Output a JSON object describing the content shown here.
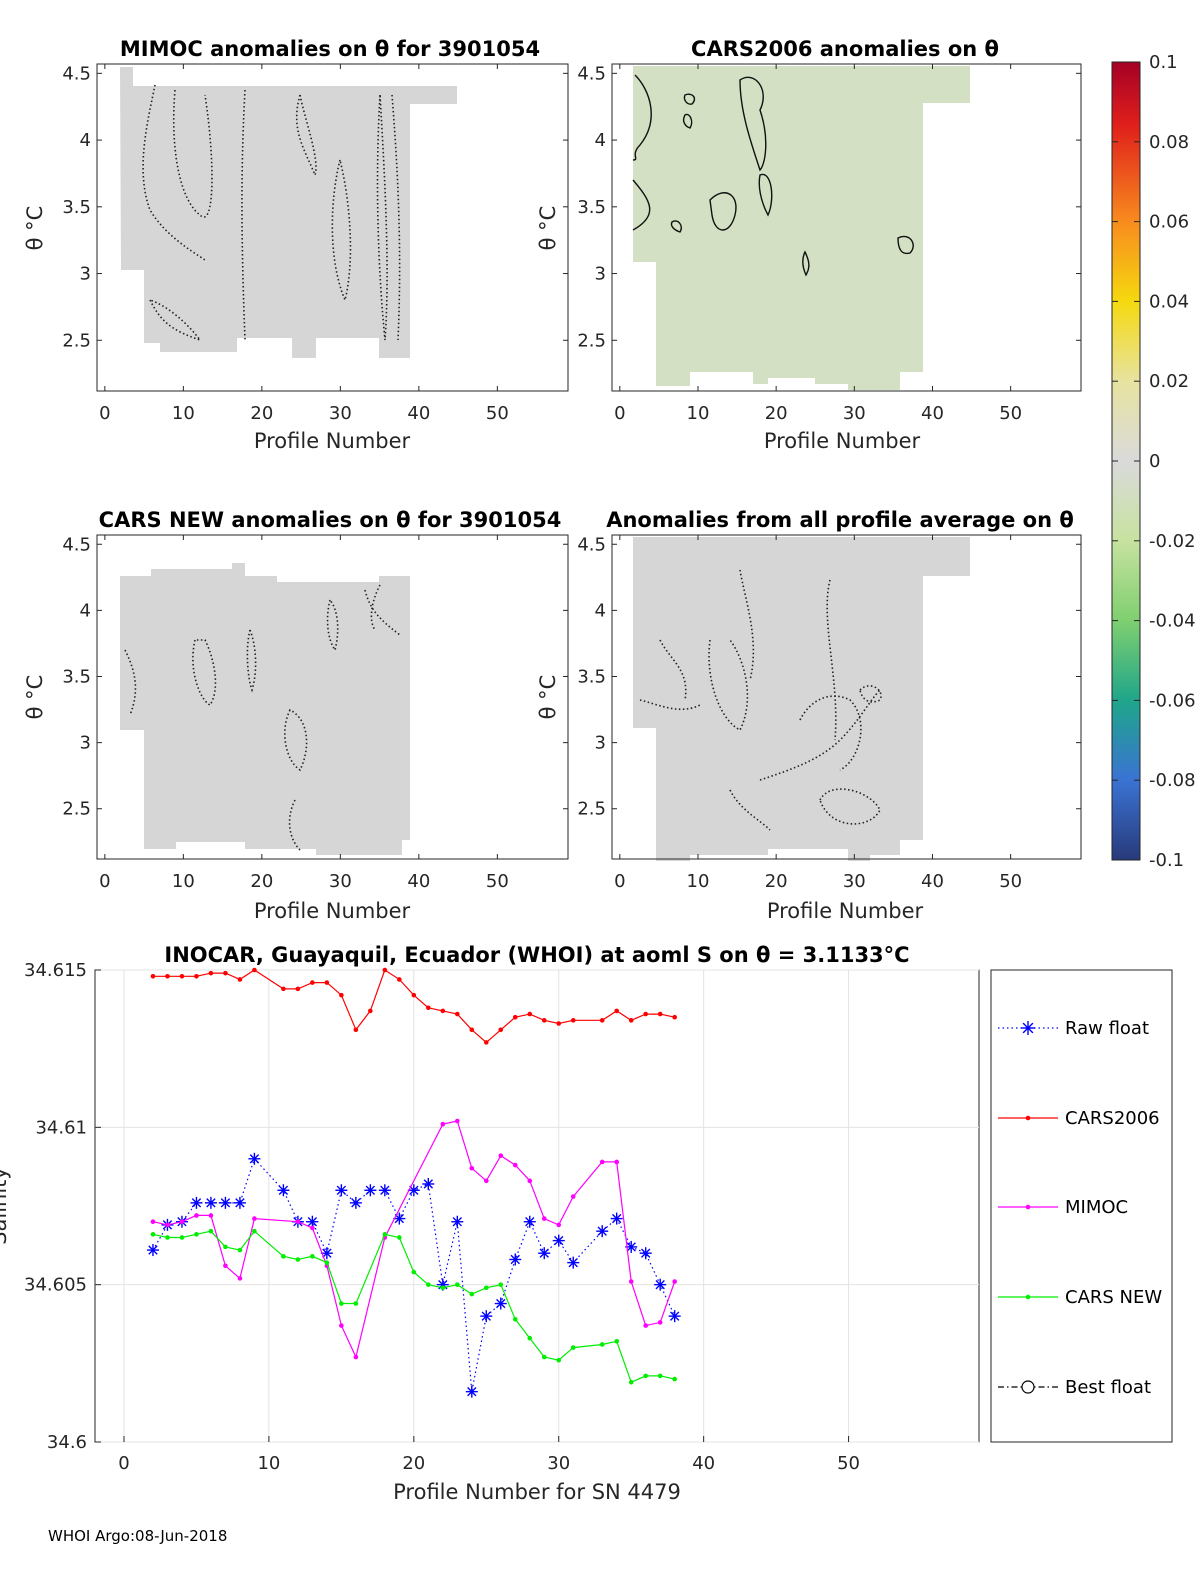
{
  "footer": "WHOI Argo:08-Jun-2018",
  "colors": {
    "raw": "#0000ff",
    "cars2006": "#ff0000",
    "mimoc": "#ff00ff",
    "carsnew": "#00ee00",
    "panel_fill": "#d6d6d6",
    "cars2006_fill": "#d3e0c4"
  },
  "chart_data": [
    {
      "type": "heatmap",
      "title": "MIMOC anomalies on θ  for 3901054",
      "xlabel": "Profile Number",
      "ylabel": "θ °C",
      "xlim": [
        -1,
        59
      ],
      "ylim": [
        2.12,
        4.57
      ],
      "xticks": [
        0,
        10,
        20,
        30,
        40,
        50
      ],
      "yticks": [
        2.5,
        3,
        3.5,
        4,
        4.5
      ],
      "xtick_labels": [
        "0",
        "10",
        "20",
        "30",
        "40",
        "50"
      ],
      "ytick_labels": [
        "2.5",
        "3",
        "3.5",
        "4",
        "4.5"
      ],
      "anomaly_value": 0.0
    },
    {
      "type": "heatmap",
      "title": "CARS2006 anomalies on θ",
      "xlabel": "Profile Number",
      "ylabel": "θ °C",
      "xlim": [
        -1,
        59
      ],
      "ylim": [
        2.12,
        4.57
      ],
      "xticks": [
        0,
        10,
        20,
        30,
        40,
        50
      ],
      "yticks": [
        2.5,
        3,
        3.5,
        4,
        4.5
      ],
      "xtick_labels": [
        "0",
        "10",
        "20",
        "30",
        "40",
        "50"
      ],
      "ytick_labels": [
        "2.5",
        "3",
        "3.5",
        "4",
        "4.5"
      ],
      "anomaly_value": -0.01
    },
    {
      "type": "heatmap",
      "title": "CARS NEW anomalies on θ for 3901054",
      "xlabel": "Profile Number",
      "ylabel": "θ °C",
      "xlim": [
        -1,
        59
      ],
      "ylim": [
        2.12,
        4.57
      ],
      "xticks": [
        0,
        10,
        20,
        30,
        40,
        50
      ],
      "yticks": [
        2.5,
        3,
        3.5,
        4,
        4.5
      ],
      "xtick_labels": [
        "0",
        "10",
        "20",
        "30",
        "40",
        "50"
      ],
      "ytick_labels": [
        "2.5",
        "3",
        "3.5",
        "4",
        "4.5"
      ],
      "anomaly_value": 0.0
    },
    {
      "type": "heatmap",
      "title": "Anomalies from all profile average on θ",
      "xlabel": "Profile Number",
      "ylabel": "θ °C",
      "xlim": [
        -1,
        59
      ],
      "ylim": [
        2.12,
        4.57
      ],
      "xticks": [
        0,
        10,
        20,
        30,
        40,
        50
      ],
      "yticks": [
        2.5,
        3,
        3.5,
        4,
        4.5
      ],
      "xtick_labels": [
        "0",
        "10",
        "20",
        "30",
        "40",
        "50"
      ],
      "ytick_labels": [
        "2.5",
        "3",
        "3.5",
        "4",
        "4.5"
      ],
      "anomaly_value": 0.0
    },
    {
      "type": "colorbar",
      "range": [
        -0.1,
        0.1
      ],
      "ticks": [
        0.1,
        0.08,
        0.06,
        0.04,
        0.02,
        0,
        -0.02,
        -0.04,
        -0.06,
        -0.08,
        -0.1
      ],
      "tick_labels": [
        "0.1",
        "0.08",
        "0.06",
        "0.04",
        "0.02",
        "0",
        "-0.02",
        "-0.04",
        "-0.06",
        "-0.08",
        "-0.1"
      ]
    },
    {
      "type": "line",
      "title": "INOCAR, Guayaquil, Ecuador (WHOI) at aoml S on θ = 3.1133°C",
      "xlabel": "Profile Number for SN 4479",
      "ylabel": "Salinity",
      "xlim": [
        -2,
        59
      ],
      "ylim": [
        34.6,
        34.615
      ],
      "xticks": [
        0,
        10,
        20,
        30,
        40,
        50
      ],
      "xtick_labels": [
        "0",
        "10",
        "20",
        "30",
        "40",
        "50"
      ],
      "yticks": [
        34.6,
        34.605,
        34.61,
        34.615
      ],
      "ytick_labels": [
        "34.6",
        "34.605",
        "34.61",
        "34.615"
      ],
      "grid": true,
      "legend_position": "right-outside",
      "series": [
        {
          "name": "Raw float",
          "style": "dotted-star",
          "color": "#0000ff",
          "x": [
            2,
            3,
            4,
            5,
            6,
            7,
            8,
            9,
            11,
            12,
            13,
            14,
            15,
            16,
            17,
            18,
            19,
            20,
            21,
            22,
            23,
            24,
            25,
            26,
            27,
            28,
            29,
            30,
            31,
            33,
            34,
            35,
            36,
            37,
            38
          ],
          "y": [
            34.6061,
            34.6069,
            34.607,
            34.6076,
            34.6076,
            34.6076,
            34.6076,
            34.609,
            34.608,
            34.607,
            34.607,
            34.606,
            34.608,
            34.6076,
            34.608,
            34.608,
            34.6071,
            34.608,
            34.6082,
            34.605,
            34.607,
            34.6016,
            34.604,
            34.6044,
            34.6058,
            34.607,
            34.606,
            34.6064,
            34.6057,
            34.6067,
            34.6071,
            34.6062,
            34.606,
            34.605,
            34.604
          ]
        },
        {
          "name": "CARS2006",
          "style": "solid-dot",
          "color": "#ff0000",
          "x": [
            2,
            3,
            4,
            5,
            6,
            7,
            8,
            9,
            11,
            12,
            13,
            14,
            15,
            16,
            17,
            18,
            19,
            20,
            21,
            22,
            23,
            24,
            25,
            26,
            27,
            28,
            29,
            30,
            31,
            33,
            34,
            35,
            36,
            37,
            38
          ],
          "y": [
            34.6148,
            34.6148,
            34.6148,
            34.6148,
            34.6149,
            34.6149,
            34.6147,
            34.615,
            34.6144,
            34.6144,
            34.6146,
            34.6146,
            34.6142,
            34.6131,
            34.6137,
            34.615,
            34.6147,
            34.6142,
            34.6138,
            34.6137,
            34.6136,
            34.6131,
            34.6127,
            34.6131,
            34.6135,
            34.6136,
            34.6134,
            34.6133,
            34.6134,
            34.6134,
            34.6137,
            34.6134,
            34.6136,
            34.6136,
            34.6135
          ]
        },
        {
          "name": "MIMOC",
          "style": "solid-dot",
          "color": "#ff00ff",
          "x": [
            2,
            3,
            4,
            5,
            6,
            7,
            8,
            9,
            12,
            13,
            14,
            15,
            16,
            18,
            22,
            23,
            24,
            25,
            26,
            27,
            28,
            29,
            30,
            31,
            33,
            34,
            35,
            36,
            37,
            38
          ],
          "y": [
            34.607,
            34.6069,
            34.607,
            34.6072,
            34.6072,
            34.6056,
            34.6052,
            34.6071,
            34.607,
            34.6068,
            34.6056,
            34.6037,
            34.6027,
            34.6065,
            34.6101,
            34.6102,
            34.6087,
            34.6083,
            34.6091,
            34.6088,
            34.6083,
            34.6071,
            34.6069,
            34.6078,
            34.6089,
            34.6089,
            34.6051,
            34.6037,
            34.6038,
            34.6051
          ]
        },
        {
          "name": "CARS NEW",
          "style": "solid-dot",
          "color": "#00ee00",
          "x": [
            2,
            3,
            4,
            5,
            6,
            7,
            8,
            9,
            11,
            12,
            13,
            14,
            15,
            16,
            18,
            19,
            20,
            21,
            22,
            23,
            24,
            25,
            26,
            27,
            28,
            29,
            30,
            31,
            33,
            34,
            35,
            36,
            37,
            38
          ],
          "y": [
            34.6066,
            34.6065,
            34.6065,
            34.6066,
            34.6067,
            34.6062,
            34.6061,
            34.6067,
            34.6059,
            34.6058,
            34.6059,
            34.6057,
            34.6044,
            34.6044,
            34.6066,
            34.6065,
            34.6054,
            34.605,
            34.6049,
            34.605,
            34.6047,
            34.6049,
            34.605,
            34.6039,
            34.6033,
            34.6027,
            34.6026,
            34.603,
            34.6031,
            34.6032,
            34.6019,
            34.6021,
            34.6021,
            34.602
          ]
        },
        {
          "name": "Best float",
          "style": "dashdot-circle",
          "color": "#000000",
          "x": [],
          "y": []
        }
      ]
    }
  ]
}
